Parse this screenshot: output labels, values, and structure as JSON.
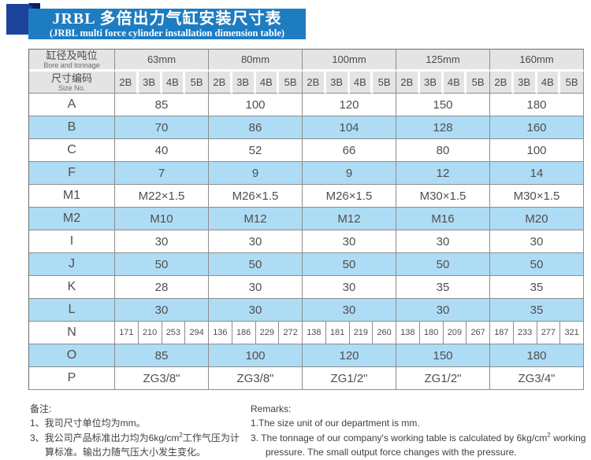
{
  "banner": {
    "title_cn": "JRBL 多倍出力气缸安装尺寸表",
    "title_en": "(JRBL multi force cylinder installation dimension table)"
  },
  "table": {
    "header": {
      "bore_label_cn": "缸径及吨位",
      "bore_label_en": "Bore and tonnage",
      "size_label_cn": "尺寸编码",
      "size_label_en": "Size No.",
      "bores": [
        "63mm",
        "80mm",
        "100mm",
        "125mm",
        "160mm"
      ],
      "size_codes": [
        "2B",
        "3B",
        "4B",
        "5B"
      ]
    },
    "rows": [
      {
        "label": "A",
        "cells": [
          "85",
          "100",
          "120",
          "150",
          "180"
        ]
      },
      {
        "label": "B",
        "cells": [
          "70",
          "86",
          "104",
          "128",
          "160"
        ]
      },
      {
        "label": "C",
        "cells": [
          "40",
          "52",
          "66",
          "80",
          "100"
        ]
      },
      {
        "label": "F",
        "cells": [
          "7",
          "9",
          "9",
          "12",
          "14"
        ]
      },
      {
        "label": "M1",
        "cells": [
          "M22×1.5",
          "M26×1.5",
          "M26×1.5",
          "M30×1.5",
          "M30×1.5"
        ]
      },
      {
        "label": "M2",
        "cells": [
          "M10",
          "M12",
          "M12",
          "M16",
          "M20"
        ]
      },
      {
        "label": "I",
        "cells": [
          "30",
          "30",
          "30",
          "30",
          "30"
        ]
      },
      {
        "label": "J",
        "cells": [
          "50",
          "50",
          "50",
          "50",
          "50"
        ]
      },
      {
        "label": "K",
        "cells": [
          "28",
          "30",
          "30",
          "35",
          "35"
        ]
      },
      {
        "label": "L",
        "cells": [
          "30",
          "30",
          "30",
          "30",
          "35"
        ]
      },
      {
        "label": "N",
        "cells": [
          "171",
          "210",
          "253",
          "294",
          "136",
          "186",
          "229",
          "272",
          "138",
          "181",
          "219",
          "260",
          "138",
          "180",
          "209",
          "267",
          "187",
          "233",
          "277",
          "321"
        ]
      },
      {
        "label": "O",
        "cells": [
          "85",
          "100",
          "120",
          "150",
          "180"
        ]
      },
      {
        "label": "P",
        "cells": [
          "ZG3/8\"",
          "ZG3/8\"",
          "ZG1/2\"",
          "ZG1/2\"",
          "ZG3/4\""
        ]
      }
    ]
  },
  "notes": {
    "cn": {
      "heading": "备注:",
      "item1": "1、我司尺寸单位均为mm。",
      "item3_pre": "3、我公司产品标准出力均为6kg/cm",
      "item3_sup": "2",
      "item3_post": "工作气压为计算标准。输出力随气压大小发生变化。"
    },
    "en": {
      "heading": "Remarks:",
      "item1": "1.The size unit of our department is mm.",
      "item3_pre": "3. The tonnage of our company's working table is calculated by 6kg/cm",
      "item3_sup": "2",
      "item3_post": " working pressure. The small output force changes with the pressure."
    }
  },
  "colors": {
    "banner_blue": "#1e7cc1",
    "deco_navy": "#1c449a",
    "row_blue": "#aedcf4",
    "header_gray": "#e4e4e4"
  }
}
